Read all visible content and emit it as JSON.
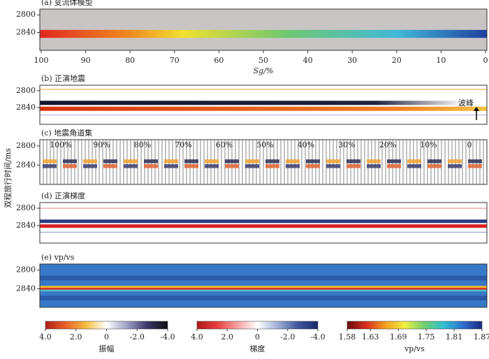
{
  "chart_data": [
    {
      "type": "heatmap",
      "title": "(a)  变流体模型",
      "ylim": [
        2787,
        2880
      ],
      "yticks": [
        2800,
        2840
      ],
      "xlim": [
        100,
        0
      ],
      "xticks": [
        100,
        90,
        80,
        70,
        60,
        50,
        40,
        30,
        20,
        10,
        0
      ],
      "xlabel": "Sg/%"
    },
    {
      "type": "heatmap",
      "title": "(b)  正演地震",
      "ylim": [
        2787,
        2880
      ],
      "yticks": [
        2800,
        2840
      ],
      "annotation": "波峰"
    },
    {
      "type": "heatmap",
      "title": "(c)  地震角道集",
      "ylim": [
        2787,
        2880
      ],
      "yticks": [
        2800,
        2840
      ],
      "ylabel": "双程旅行时间/ms",
      "trace_labels": [
        "100%",
        "90%",
        "80%",
        "70%",
        "60%",
        "50%",
        "40%",
        "30%",
        "20%",
        "10%",
        "0"
      ]
    },
    {
      "type": "heatmap",
      "title": "(d)  正演梯度",
      "ylim": [
        2787,
        2880
      ],
      "yticks": [
        2800,
        2840
      ]
    },
    {
      "type": "heatmap",
      "title": "(e)  vp/vs",
      "ylim": [
        2787,
        2880
      ],
      "yticks": [
        2800,
        2840
      ]
    },
    {
      "type": "colorbar",
      "label": "振幅",
      "clim": [
        4,
        -4
      ],
      "ticks": [
        {
          "value": 4,
          "label": "4.0"
        },
        {
          "value": 2,
          "label": "2.0"
        },
        0,
        {
          "value": -2,
          "label": "-2.0"
        },
        {
          "value": -4,
          "label": "-4.0"
        }
      ],
      "colors": [
        "#b0201a",
        "#e8602a",
        "#f5c040",
        "#ffffff",
        "#9fa0c8",
        "#3a3568",
        "#111111"
      ]
    },
    {
      "type": "colorbar",
      "label": "梯度",
      "clim": [
        4,
        -4
      ],
      "ticks": [
        {
          "value": 4,
          "label": "4.0"
        },
        {
          "value": 2,
          "label": "2.0"
        },
        0,
        {
          "value": -2,
          "label": "-2.0"
        },
        {
          "value": -4,
          "label": "-4.0"
        }
      ],
      "colors": [
        "#b01818",
        "#e84040",
        "#f8a0a0",
        "#ffffff",
        "#a0b0d8",
        "#4058a0",
        "#1a2a6a"
      ]
    },
    {
      "type": "colorbar",
      "label": "vp/vs",
      "clim": [
        1.58,
        1.87
      ],
      "ticks": [
        1.58,
        1.63,
        1.69,
        1.75,
        1.81,
        1.87
      ],
      "colors": [
        "#6a0a0a",
        "#d83020",
        "#f5a020",
        "#f0f040",
        "#70d070",
        "#30c0d0",
        "#3070d0",
        "#1a2a80"
      ]
    }
  ]
}
